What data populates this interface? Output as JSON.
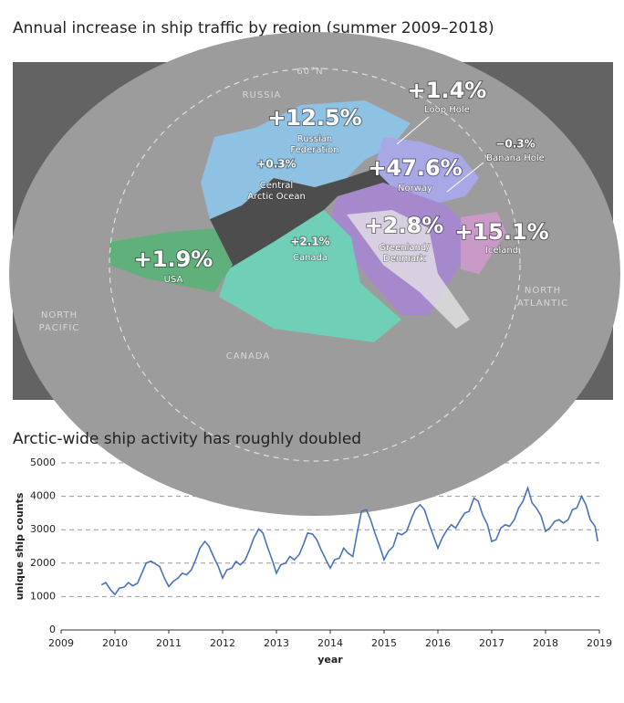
{
  "map": {
    "title": "Annual increase in ship traffic by region (summer 2009–2018)",
    "regions": [
      {
        "change": "+12.5%",
        "name": [
          "Russian",
          "Federation"
        ]
      },
      {
        "change": "+1.4%",
        "name": [
          "Loop Hole"
        ]
      },
      {
        "change": "+47.6%",
        "name": [
          "Norway"
        ]
      },
      {
        "change": "−0.3%",
        "name": [
          "Banana Hole"
        ]
      },
      {
        "change": "+0.3%",
        "name": [
          "Central",
          "Arctic Ocean"
        ]
      },
      {
        "change": "+2.1%",
        "name": [
          "Canada"
        ]
      },
      {
        "change": "+2.8%",
        "name": [
          "Greenland/",
          "Denmark"
        ]
      },
      {
        "change": "+15.1%",
        "name": [
          "Iceland"
        ]
      },
      {
        "change": "+1.9%",
        "name": [
          "USA"
        ]
      }
    ],
    "places": [
      [
        "RUSSIA"
      ],
      [
        "60°N"
      ],
      [
        "NORTH",
        "PACIFIC"
      ],
      [
        "CANADA"
      ],
      [
        "NORTH",
        "ATLANTIC"
      ]
    ]
  },
  "chart_data": {
    "type": "line",
    "title": "Arctic-wide ship activity has roughly doubled",
    "xlabel": "year",
    "ylabel": "unique ship counts",
    "xlim": [
      2009,
      2019
    ],
    "xticks": [
      2009,
      2010,
      2011,
      2012,
      2013,
      2014,
      2015,
      2016,
      2017,
      2018,
      2019
    ],
    "ylim": [
      0,
      5000
    ],
    "yticks": [
      0,
      1000,
      2000,
      3000,
      4000,
      5000
    ],
    "grid": true,
    "x": [
      2009.75,
      2009.83,
      2009.92,
      2010.0,
      2010.08,
      2010.17,
      2010.25,
      2010.33,
      2010.42,
      2010.5,
      2010.58,
      2010.67,
      2010.75,
      2010.83,
      2010.92,
      2011.0,
      2011.08,
      2011.17,
      2011.25,
      2011.33,
      2011.42,
      2011.5,
      2011.58,
      2011.67,
      2011.75,
      2011.83,
      2011.92,
      2012.0,
      2012.08,
      2012.17,
      2012.25,
      2012.33,
      2012.42,
      2012.5,
      2012.58,
      2012.67,
      2012.75,
      2012.83,
      2012.92,
      2013.0,
      2013.08,
      2013.17,
      2013.25,
      2013.33,
      2013.42,
      2013.5,
      2013.58,
      2013.67,
      2013.75,
      2013.83,
      2013.92,
      2014.0,
      2014.08,
      2014.17,
      2014.25,
      2014.33,
      2014.42,
      2014.5,
      2014.58,
      2014.67,
      2014.75,
      2014.83,
      2014.92,
      2015.0,
      2015.08,
      2015.17,
      2015.25,
      2015.33,
      2015.42,
      2015.5,
      2015.58,
      2015.67,
      2015.75,
      2015.83,
      2015.92,
      2016.0,
      2016.08,
      2016.17,
      2016.25,
      2016.33,
      2016.42,
      2016.5,
      2016.58,
      2016.67,
      2016.75,
      2016.83,
      2016.92,
      2017.0,
      2017.08,
      2017.17,
      2017.25,
      2017.33,
      2017.42,
      2017.5,
      2017.58,
      2017.67,
      2017.75,
      2017.83,
      2017.92,
      2018.0,
      2018.08,
      2018.17,
      2018.25,
      2018.33,
      2018.42,
      2018.5,
      2018.58,
      2018.67,
      2018.75,
      2018.83,
      2018.92,
      2018.97
    ],
    "series": [
      {
        "name": "unique ship counts",
        "color": "#4a72b8",
        "values": [
          1350,
          1420,
          1200,
          1060,
          1250,
          1280,
          1420,
          1320,
          1400,
          1700,
          2000,
          2060,
          1980,
          1900,
          1550,
          1300,
          1450,
          1550,
          1700,
          1650,
          1800,
          2100,
          2450,
          2650,
          2500,
          2200,
          1900,
          1550,
          1800,
          1850,
          2050,
          1950,
          2100,
          2400,
          2750,
          3020,
          2900,
          2500,
          2100,
          1700,
          1950,
          2000,
          2200,
          2100,
          2250,
          2550,
          2900,
          2870,
          2700,
          2400,
          2100,
          1850,
          2100,
          2150,
          2450,
          2300,
          2200,
          2900,
          3550,
          3600,
          3300,
          2900,
          2500,
          2100,
          2350,
          2500,
          2900,
          2850,
          2950,
          3300,
          3600,
          3750,
          3600,
          3200,
          2800,
          2450,
          2750,
          3000,
          3150,
          3050,
          3300,
          3500,
          3550,
          3950,
          3850,
          3450,
          3150,
          2650,
          2700,
          3050,
          3150,
          3100,
          3300,
          3650,
          3850,
          4250,
          3800,
          3650,
          3400,
          2950,
          3050,
          3250,
          3300,
          3200,
          3300,
          3600,
          3650,
          4000,
          3750,
          3300,
          3100,
          2650
        ]
      }
    ]
  }
}
